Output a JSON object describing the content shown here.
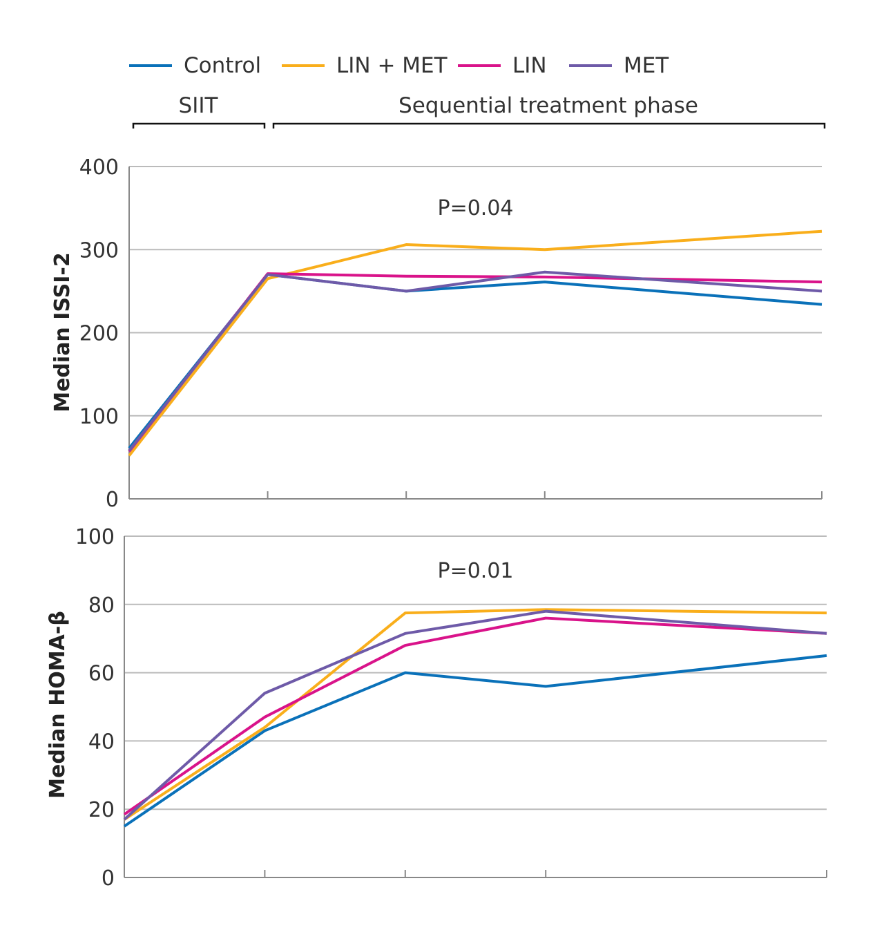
{
  "legend": [
    {
      "name": "Control",
      "color": "#0a71b9"
    },
    {
      "name": "LIN + MET",
      "color": "#f9ae1b"
    },
    {
      "name": "LIN",
      "color": "#d9138a"
    },
    {
      "name": "MET",
      "color": "#6e5aa8"
    }
  ],
  "phases": {
    "siit": "SIIT",
    "sequential": "Sequential treatment phase"
  },
  "chart_data": [
    {
      "type": "line",
      "title": "",
      "ylabel": "Median ISSI-2",
      "xlabel": "",
      "ylim": [
        0,
        400
      ],
      "yticks": [
        0,
        100,
        200,
        300,
        400
      ],
      "x": [
        0,
        1,
        2,
        3,
        5
      ],
      "annotation": "P=0.04",
      "grid": true,
      "series": [
        {
          "name": "Control",
          "values": [
            61,
            270,
            250,
            261,
            234
          ]
        },
        {
          "name": "LIN + MET",
          "values": [
            52,
            265,
            306,
            300,
            322
          ]
        },
        {
          "name": "LIN",
          "values": [
            57,
            271,
            268,
            267,
            261
          ]
        },
        {
          "name": "MET",
          "values": [
            58,
            270,
            250,
            273,
            250
          ]
        }
      ]
    },
    {
      "type": "line",
      "title": "",
      "ylabel": "Median HOMA-β",
      "xlabel": "",
      "ylim": [
        0,
        100
      ],
      "yticks": [
        0,
        20,
        40,
        60,
        80,
        100
      ],
      "x": [
        0,
        1,
        2,
        3,
        5
      ],
      "annotation": "P=0.01",
      "grid": true,
      "series": [
        {
          "name": "Control",
          "values": [
            15,
            43,
            60,
            56,
            65
          ]
        },
        {
          "name": "LIN + MET",
          "values": [
            17,
            44,
            77.5,
            78.5,
            77.5
          ]
        },
        {
          "name": "LIN",
          "values": [
            18.5,
            47,
            68,
            76,
            71.5
          ]
        },
        {
          "name": "MET",
          "values": [
            17,
            54,
            71.5,
            78,
            71.5
          ]
        }
      ]
    }
  ]
}
